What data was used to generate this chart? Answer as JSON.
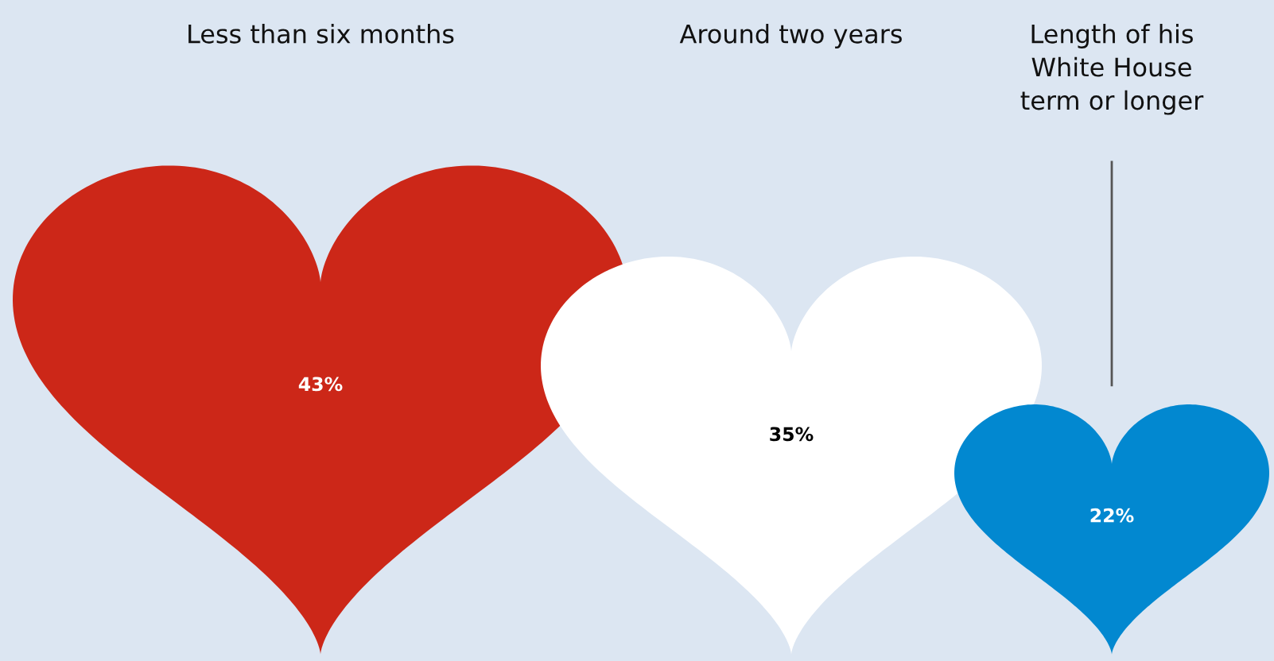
{
  "chart_data": {
    "type": "other",
    "categories": [
      "Less than six months",
      "Around two years",
      "Length of his\nWhite House\nterm or longer"
    ],
    "values": [
      43,
      35,
      22
    ],
    "colors": [
      "#cc2718",
      "#ffffff",
      "#0288d0"
    ],
    "value_labels": [
      "43%",
      "35%",
      "22%"
    ]
  }
}
